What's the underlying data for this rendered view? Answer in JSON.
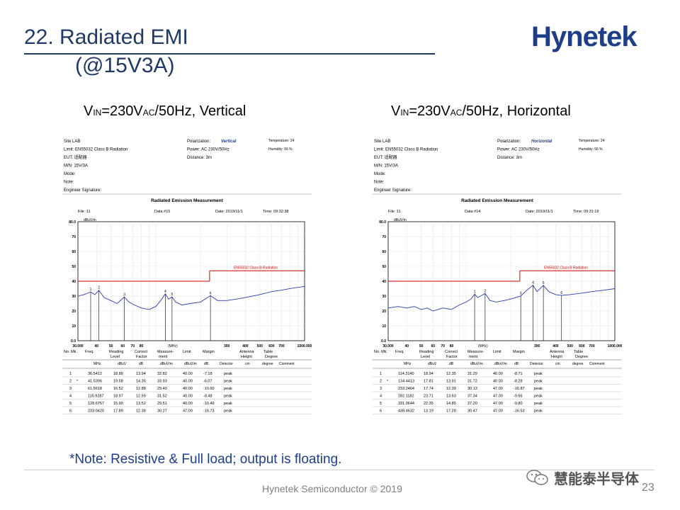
{
  "slide": {
    "title_line1": "22. Radiated EMI",
    "title_line2": "(@15V3A)",
    "logo": "Hynetek",
    "note": "*Note: Resistive & Full load; output is floating.",
    "footer": "Hynetek Semiconductor © 2019",
    "page": "23",
    "watermark": "慧能泰半导体",
    "watermark_icon": "wechat-icon"
  },
  "panels": [
    {
      "subtitle": {
        "v": "V",
        "in": "IN",
        "mid": "=230V",
        "ac": "AC",
        "rest": "/50Hz, Vertical"
      },
      "header": {
        "site": "Site  LAB",
        "limit": "Limit:  EN55032 Class B Radiation",
        "eut": "EUT:  适配器",
        "mn": "M/N:   15V/3A",
        "mode": "Mode:",
        "note": "Note:",
        "engineer": "Engineer Signature:",
        "polarization_label": "Polarization:",
        "polarization": "Vertical",
        "power": "Power:     AC 230V/50Hz",
        "distance": "Distance:   3m",
        "temperature": "Temperature:       24",
        "humidity": "Humidity:        56 %"
      },
      "measure_title": "Radiated Emission Measurement",
      "file_line": {
        "file": "File :11",
        "data": "Data #15",
        "date": "Date: 2019/11/1",
        "time": "Time: 09:32:38"
      },
      "limit_label": "EN55032 Class B Radiation",
      "columns": [
        "No. Mk.",
        "Freq.",
        "Reading Level",
        "Correct Factor",
        "Measure- ment",
        "Limit",
        "Margin",
        "",
        "Antenna Height",
        "Table Degree",
        ""
      ],
      "units": [
        "",
        "MHz",
        "dBuV",
        "dB",
        "dBuV/m",
        "dBuV/m",
        "dB",
        "Detector",
        "cm",
        "degree",
        "Comment"
      ],
      "rows": [
        [
          "1",
          "",
          "36.5412",
          "18.88",
          "13.94",
          "32.82",
          "40.00",
          "-7.18",
          "peak"
        ],
        [
          "2",
          "*",
          "41.5306",
          "19.58",
          "14.35",
          "33.93",
          "40.00",
          "-6.07",
          "peak"
        ],
        [
          "3",
          "",
          "61.5618",
          "16.52",
          "12.88",
          "29.40",
          "40.00",
          "-10.60",
          "peak"
        ],
        [
          "4",
          "",
          "115.9287",
          "18.97",
          "12.55",
          "31.52",
          "40.00",
          "-8.48",
          "peak"
        ],
        [
          "5",
          "",
          "128.6757",
          "15.99",
          "13.52",
          "29.51",
          "40.00",
          "-10.49",
          "peak"
        ],
        [
          "6",
          "",
          "233.0420",
          "17.89",
          "12.38",
          "30.27",
          "47.00",
          "-16.73",
          "peak"
        ]
      ]
    },
    {
      "subtitle": {
        "v": "V",
        "in": "IN",
        "mid": "=230V",
        "ac": "AC",
        "rest": "/50Hz, Horizontal"
      },
      "header": {
        "site": "Site  LAB",
        "limit": "Limit:  EN55032 Class B Radiation",
        "eut": "EUT:  适配器",
        "mn": "M/N:   15V/3A",
        "mode": "Mode:",
        "note": "Note:",
        "engineer": "Engineer Signature:",
        "polarization_label": "Polarization:",
        "polarization": "Horizontal",
        "power": "Power:     AC 230V/50Hz",
        "distance": "Distance:   3m",
        "temperature": "Temperature:       24",
        "humidity": "Humidity:        56 %"
      },
      "measure_title": "Radiated Emission Measurement",
      "file_line": {
        "file": "File :11",
        "data": "Data #14",
        "date": "Date: 2019/11/1",
        "time": "Time: 09:31:19"
      },
      "limit_label": "EN55032 Class B Radiation",
      "columns": [
        "No. Mk.",
        "Freq.",
        "Reading Level",
        "Correct Factor",
        "Measure- ment",
        "Limit",
        "Margin",
        "",
        "Antenna Height",
        "Table Degree",
        ""
      ],
      "units": [
        "",
        "MHz",
        "dBuV",
        "dB",
        "dBuV/m",
        "dBuV/m",
        "dB",
        "Detector",
        "cm",
        "degree",
        "Comment"
      ],
      "rows": [
        [
          "1",
          "",
          "114.3140",
          "18.94",
          "12.35",
          "31.29",
          "40.00",
          "-8.71",
          "peak"
        ],
        [
          "2",
          "*",
          "134.4413",
          "17.81",
          "13.91",
          "31.72",
          "40.00",
          "-8.28",
          "peak"
        ],
        [
          "3",
          "",
          "233.2464",
          "17.74",
          "12.39",
          "30.13",
          "47.00",
          "-16.87",
          "peak"
        ],
        [
          "4",
          "",
          "282.1182",
          "23.71",
          "13.63",
          "37.34",
          "47.00",
          "-9.66",
          "peak"
        ],
        [
          "5",
          "",
          "331.0644",
          "22.35",
          "14.85",
          "37.20",
          "47.00",
          "-9.80",
          "peak"
        ],
        [
          "6",
          "",
          "438.4632",
          "13.19",
          "17.28",
          "30.47",
          "47.00",
          "-16.53",
          "peak"
        ]
      ]
    }
  ],
  "chart_data": [
    {
      "type": "line",
      "x_scale": "log",
      "xlim": [
        30,
        1000
      ],
      "ylim": [
        0,
        80
      ],
      "y_unit": "dBuV/m",
      "x_unit": "(MHz)",
      "y_ticks": [
        "0.0",
        "10",
        "20",
        "30",
        "40",
        "50",
        "60",
        "70",
        "80.0"
      ],
      "x_ticks": [
        "30.000",
        "40",
        "50",
        "60",
        "70",
        "80",
        "",
        "300",
        "400",
        "500",
        "600",
        "700",
        "1000.000"
      ],
      "x_tick_values": [
        30,
        40,
        50,
        60,
        70,
        80,
        0,
        300,
        400,
        500,
        600,
        700,
        1000
      ],
      "limit": [
        {
          "x": [
            30,
            230
          ],
          "y": [
            40,
            40
          ]
        },
        {
          "x": [
            230,
            1000
          ],
          "y": [
            47,
            47
          ]
        }
      ],
      "markers": [
        {
          "label": "1",
          "x": 36.5412,
          "y": 32.82
        },
        {
          "label": "2",
          "x": 41.5306,
          "y": 33.93
        },
        {
          "label": "3",
          "x": 61.5618,
          "y": 29.4
        },
        {
          "label": "4",
          "x": 115.9287,
          "y": 31.52
        },
        {
          "label": "5",
          "x": 128.6757,
          "y": 29.51
        },
        {
          "label": "6",
          "x": 233.042,
          "y": 30.27
        }
      ],
      "trace_x": [
        30,
        33,
        36.5,
        39,
        41.5,
        45,
        50,
        55,
        61.5,
        66,
        72,
        80,
        90,
        100,
        108,
        116,
        122,
        128.7,
        136,
        150,
        170,
        200,
        233,
        260,
        300,
        350,
        400,
        500,
        600,
        700,
        850,
        1000
      ],
      "trace_y": [
        30,
        31,
        32.8,
        31,
        33.9,
        29,
        27,
        25,
        29.4,
        26,
        24,
        22,
        21,
        23,
        27,
        31.5,
        28,
        29.5,
        26,
        24,
        25,
        26,
        30.3,
        27,
        27,
        28,
        29,
        31,
        33,
        34,
        35.5,
        36.5
      ]
    },
    {
      "type": "line",
      "x_scale": "log",
      "xlim": [
        30,
        1000
      ],
      "ylim": [
        0,
        80
      ],
      "y_unit": "dBuV/m",
      "x_unit": "(MHz)",
      "y_ticks": [
        "0.0",
        "10",
        "20",
        "30",
        "40",
        "50",
        "60",
        "70",
        "80.0"
      ],
      "x_ticks": [
        "30.000",
        "40",
        "50",
        "60",
        "70",
        "80",
        "",
        "300",
        "400",
        "500",
        "600",
        "700",
        "1000.000"
      ],
      "x_tick_values": [
        30,
        40,
        50,
        60,
        70,
        80,
        0,
        300,
        400,
        500,
        600,
        700,
        1000
      ],
      "limit": [
        {
          "x": [
            30,
            230
          ],
          "y": [
            40,
            40
          ]
        },
        {
          "x": [
            230,
            1000
          ],
          "y": [
            47,
            47
          ]
        }
      ],
      "markers": [
        {
          "label": "1",
          "x": 114.314,
          "y": 31.29
        },
        {
          "label": "2",
          "x": 134.4413,
          "y": 31.72
        },
        {
          "label": "3",
          "x": 233.2464,
          "y": 30.13
        },
        {
          "label": "4",
          "x": 282.1182,
          "y": 37.34
        },
        {
          "label": "5",
          "x": 331.0644,
          "y": 37.2
        },
        {
          "label": "6",
          "x": 438.4632,
          "y": 30.47
        }
      ],
      "trace_x": [
        30,
        35,
        40,
        45,
        50,
        55,
        60,
        70,
        80,
        90,
        100,
        108,
        114.3,
        120,
        134.4,
        145,
        160,
        180,
        200,
        233,
        250,
        282,
        300,
        331,
        360,
        400,
        438,
        500,
        600,
        700,
        850,
        1000
      ],
      "trace_y": [
        22,
        23,
        22,
        23,
        21,
        22,
        20,
        22,
        21,
        24,
        26,
        28,
        31.3,
        29,
        31.7,
        27,
        26,
        27,
        28,
        30.1,
        33,
        37.3,
        33,
        37.2,
        33,
        31,
        30.5,
        31,
        32,
        33,
        34,
        35
      ]
    }
  ]
}
